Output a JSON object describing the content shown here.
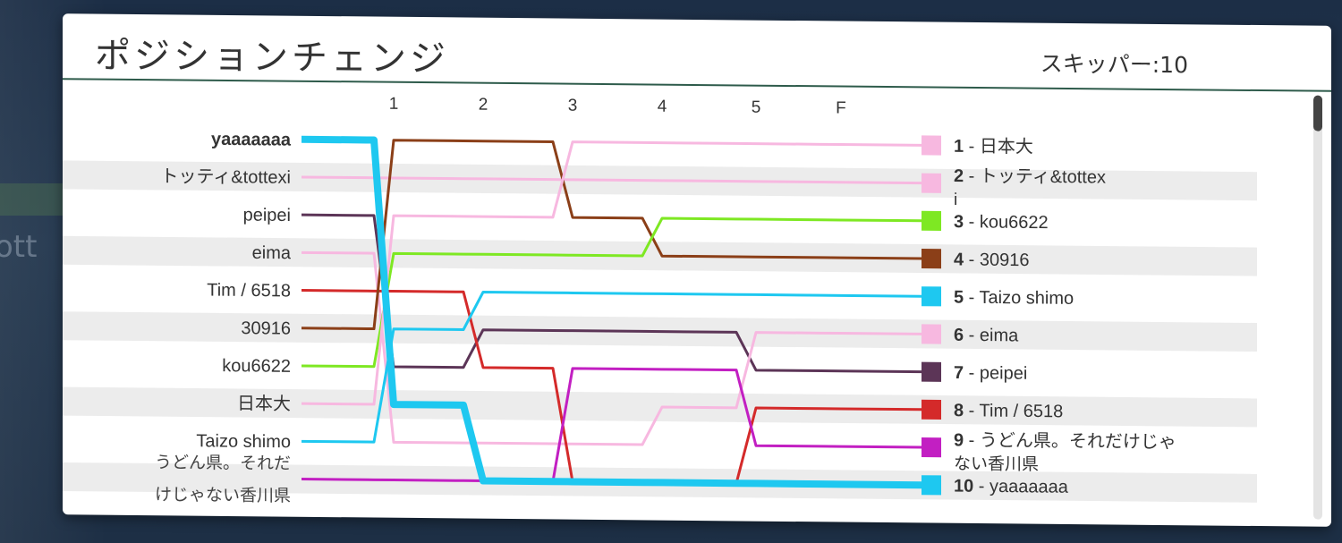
{
  "title": "ポジションチェンジ",
  "skipper": "スキッパー:10",
  "background_text": "ott",
  "columns": [
    "1",
    "2",
    "3",
    "4",
    "5",
    "F"
  ],
  "players": [
    {
      "name": "yaaaaaaa",
      "color": "#1ec8f0",
      "bold": true,
      "positions": [
        1,
        8,
        10,
        10,
        10,
        10,
        10
      ],
      "final_label": "10 - yaaaaaaa"
    },
    {
      "name": "トッティ&tottexi",
      "color": "#f7b8e0",
      "bold": false,
      "positions": [
        2,
        2,
        2,
        2,
        2,
        2,
        2
      ],
      "final_label": "2 - トッティ&tottexi"
    },
    {
      "name": "peipei",
      "color": "#5c3557",
      "bold": false,
      "positions": [
        3,
        7,
        6,
        6,
        6,
        7,
        7
      ],
      "final_label": "7 - peipei"
    },
    {
      "name": "eima",
      "color": "#f7b8e0",
      "bold": false,
      "positions": [
        4,
        9,
        9,
        9,
        8,
        6,
        6
      ],
      "final_label": "6 - eima"
    },
    {
      "name": "Tim / 6518",
      "color": "#d42a2a",
      "bold": false,
      "positions": [
        5,
        5,
        7,
        10,
        10,
        8,
        8
      ],
      "final_label": "8 - Tim / 6518"
    },
    {
      "name": "30916",
      "color": "#8b3f18",
      "bold": false,
      "positions": [
        6,
        1,
        1,
        3,
        4,
        4,
        4
      ],
      "final_label": "4 - 30916"
    },
    {
      "name": "kou6622",
      "color": "#7ee823",
      "bold": false,
      "positions": [
        7,
        4,
        4,
        4,
        3,
        3,
        3
      ],
      "final_label": "3 - kou6622"
    },
    {
      "name": "日本大",
      "color": "#f7b8e0",
      "bold": false,
      "positions": [
        8,
        3,
        3,
        1,
        1,
        1,
        1
      ],
      "final_label": "1 - 日本大"
    },
    {
      "name": "Taizo shimo",
      "color": "#1ec8f0",
      "bold": false,
      "positions": [
        9,
        6,
        5,
        5,
        5,
        5,
        5
      ],
      "final_label": "5 - Taizo shimo"
    },
    {
      "name": "うどん県。それだけじゃない香川県",
      "color": "#c21fc2",
      "bold": false,
      "positions": [
        10,
        10,
        10,
        7,
        7,
        9,
        9
      ],
      "final_label": "9 - うどん県。それだけじゃない香川県"
    }
  ]
}
